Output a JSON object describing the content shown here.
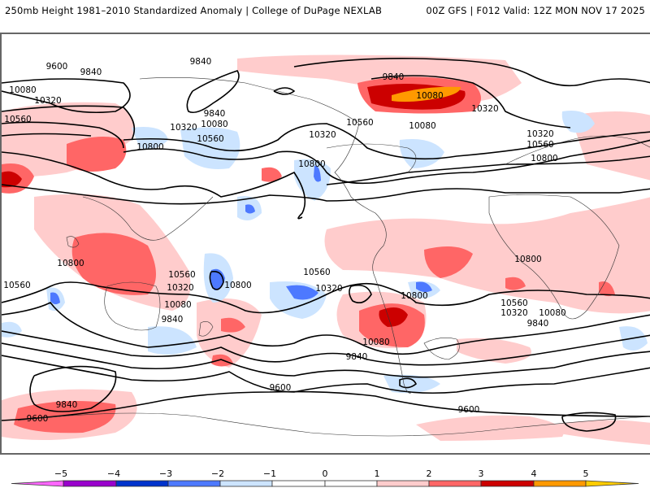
{
  "header": {
    "left_title": "250mb Height 1981–2010 Standardized Anomaly | College of DuPage NEXLAB",
    "right_title": "00Z GFS | F012 Valid: 12Z MON NOV 17 2025"
  },
  "map": {
    "projection": "global cylindrical",
    "field": "250mb geopotential height (contours) with standardized anomaly (shaded)",
    "contour_levels": [
      9600,
      9840,
      10080,
      10320,
      10560,
      10800
    ],
    "contour_labels": [
      {
        "text": "9600",
        "region": "north-pacific-west"
      },
      {
        "text": "9840",
        "region": "north-pacific-west"
      },
      {
        "text": "9840",
        "region": "bering-sea"
      },
      {
        "text": "10080",
        "region": "east-asia"
      },
      {
        "text": "10320",
        "region": "east-asia"
      },
      {
        "text": "10560",
        "region": "central-asia"
      },
      {
        "text": "10320",
        "region": "japan"
      },
      {
        "text": "9840",
        "region": "north-pacific"
      },
      {
        "text": "10080",
        "region": "north-pacific"
      },
      {
        "text": "10560",
        "region": "north-pacific"
      },
      {
        "text": "10800",
        "region": "west-pacific"
      },
      {
        "text": "10320",
        "region": "gulf-of-alaska"
      },
      {
        "text": "10800",
        "region": "east-pacific"
      },
      {
        "text": "9840",
        "region": "greenland"
      },
      {
        "text": "10080",
        "region": "greenland"
      },
      {
        "text": "10560",
        "region": "north-america"
      },
      {
        "text": "10080",
        "region": "eastern-canada"
      },
      {
        "text": "10320",
        "region": "north-atlantic"
      },
      {
        "text": "10320",
        "region": "western-europe"
      },
      {
        "text": "10560",
        "region": "western-europe"
      },
      {
        "text": "10800",
        "region": "north-africa"
      },
      {
        "text": "10800",
        "region": "south-indian-ocean-west"
      },
      {
        "text": "10560",
        "region": "south-indian-ocean-west"
      },
      {
        "text": "10560",
        "region": "tasman-sea"
      },
      {
        "text": "10320",
        "region": "tasman-sea"
      },
      {
        "text": "10080",
        "region": "tasman-sea"
      },
      {
        "text": "9840",
        "region": "southern-ocean-west"
      },
      {
        "text": "10800",
        "region": "south-pacific"
      },
      {
        "text": "10560",
        "region": "south-pacific-east"
      },
      {
        "text": "10320",
        "region": "south-pacific-east"
      },
      {
        "text": "10800",
        "region": "southern-south-america"
      },
      {
        "text": "10080",
        "region": "southeast-pacific"
      },
      {
        "text": "9840",
        "region": "drake-passage"
      },
      {
        "text": "10800",
        "region": "south-atlantic"
      },
      {
        "text": "10560",
        "region": "south-atlantic"
      },
      {
        "text": "10320",
        "region": "south-atlantic"
      },
      {
        "text": "10080",
        "region": "south-atlantic"
      },
      {
        "text": "9840",
        "region": "south-atlantic"
      },
      {
        "text": "9840",
        "region": "southern-ocean-far-west"
      },
      {
        "text": "9600",
        "region": "antarctic-west"
      },
      {
        "text": "9600",
        "region": "antarctic-pacific"
      },
      {
        "text": "9600",
        "region": "antarctic-atlantic"
      }
    ]
  },
  "colorbar": {
    "ticks": [
      "−5",
      "−4",
      "−3",
      "−2",
      "−1",
      "0",
      "1",
      "2",
      "3",
      "4",
      "5"
    ],
    "colors": {
      "below_-5": "#ff66ff",
      "-5_-4": "#9900cc",
      "-4_-3": "#0033cc",
      "-3_-2": "#4d79ff",
      "-2_-1": "#cce4ff",
      "-1_0": "#ffffff",
      "0_1": "#ffffff",
      "1_2": "#ffcccc",
      "2_3": "#ff6666",
      "3_4": "#cc0000",
      "4_5": "#ff9900",
      "above_5": "#ffcc00"
    }
  }
}
